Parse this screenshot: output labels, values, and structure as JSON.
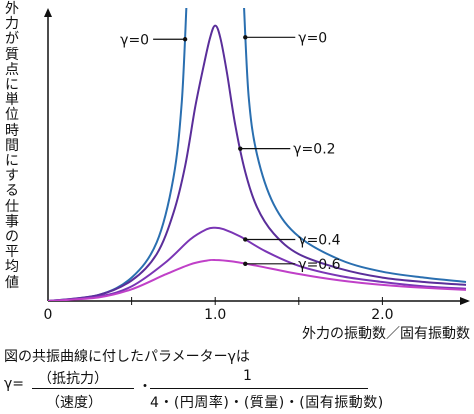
{
  "chart_data": {
    "type": "line",
    "ylabel": "外力が質点に単位時間にする仕事の平均値",
    "xlabel": "外力の振動数／固有振動数",
    "x_ticks": [
      "0",
      "1.0",
      "2.0"
    ],
    "xlim": [
      0,
      2.5
    ],
    "ylim": [
      0,
      1.0
    ],
    "series": [
      {
        "name": "γ=0",
        "color": "#2a6fb0",
        "x": [
          0.0,
          0.3,
          0.5,
          0.65,
          0.75,
          0.8,
          0.83,
          1.17,
          1.2,
          1.25,
          1.35,
          1.5,
          1.75,
          2.0,
          2.25,
          2.5
        ],
        "y": [
          0.0,
          0.02,
          0.08,
          0.2,
          0.42,
          0.68,
          1.0,
          1.0,
          0.7,
          0.5,
          0.33,
          0.22,
          0.14,
          0.1,
          0.08,
          0.065
        ]
      },
      {
        "name": "γ=0.2",
        "color": "#5a2e9a",
        "x": [
          0.0,
          0.3,
          0.5,
          0.65,
          0.75,
          0.82,
          0.88,
          0.93,
          0.97,
          1.0,
          1.03,
          1.07,
          1.12,
          1.18,
          1.25,
          1.35,
          1.5,
          1.75,
          2.0,
          2.25,
          2.5
        ],
        "y": [
          0.0,
          0.02,
          0.07,
          0.16,
          0.3,
          0.46,
          0.66,
          0.8,
          0.9,
          0.94,
          0.9,
          0.78,
          0.6,
          0.44,
          0.32,
          0.23,
          0.16,
          0.11,
          0.08,
          0.065,
          0.055
        ]
      },
      {
        "name": "γ=0.4",
        "color": "#7a35b5",
        "x": [
          0.0,
          0.3,
          0.5,
          0.7,
          0.85,
          0.95,
          1.0,
          1.05,
          1.15,
          1.3,
          1.5,
          1.75,
          2.0,
          2.25,
          2.5
        ],
        "y": [
          0.0,
          0.015,
          0.05,
          0.13,
          0.21,
          0.245,
          0.25,
          0.245,
          0.22,
          0.17,
          0.12,
          0.085,
          0.065,
          0.05,
          0.042
        ]
      },
      {
        "name": "γ=0.6",
        "color": "#c040c8",
        "x": [
          0.0,
          0.3,
          0.5,
          0.7,
          0.85,
          0.95,
          1.0,
          1.1,
          1.25,
          1.5,
          1.75,
          2.0,
          2.25,
          2.5
        ],
        "y": [
          0.0,
          0.012,
          0.04,
          0.09,
          0.125,
          0.138,
          0.14,
          0.135,
          0.12,
          0.092,
          0.07,
          0.055,
          0.045,
          0.038
        ]
      }
    ],
    "annotations": [
      {
        "text": "γ=0",
        "series": "γ=0",
        "side": "left",
        "at_x": 0.82
      },
      {
        "text": "γ=0",
        "series": "γ=0",
        "side": "right",
        "at_x": 1.18
      },
      {
        "text": "γ=0.2",
        "series": "γ=0.2",
        "side": "right",
        "at_x": 1.15
      },
      {
        "text": "γ=0.4",
        "series": "γ=0.4",
        "side": "right",
        "at_x": 1.18
      },
      {
        "text": "γ=0.6",
        "series": "γ=0.6",
        "side": "right",
        "at_x": 1.18
      }
    ],
    "grid": false,
    "legend": "none"
  },
  "formula": {
    "line1": "図の共振曲線に付したパラメーターγは",
    "gamma_eq": "γ=",
    "num1": "（抵抗力）",
    "den1": "（速度）",
    "dot": "・",
    "num2": "1",
    "den2": "4・(円周率)・(質量)・(固有振動数)"
  }
}
